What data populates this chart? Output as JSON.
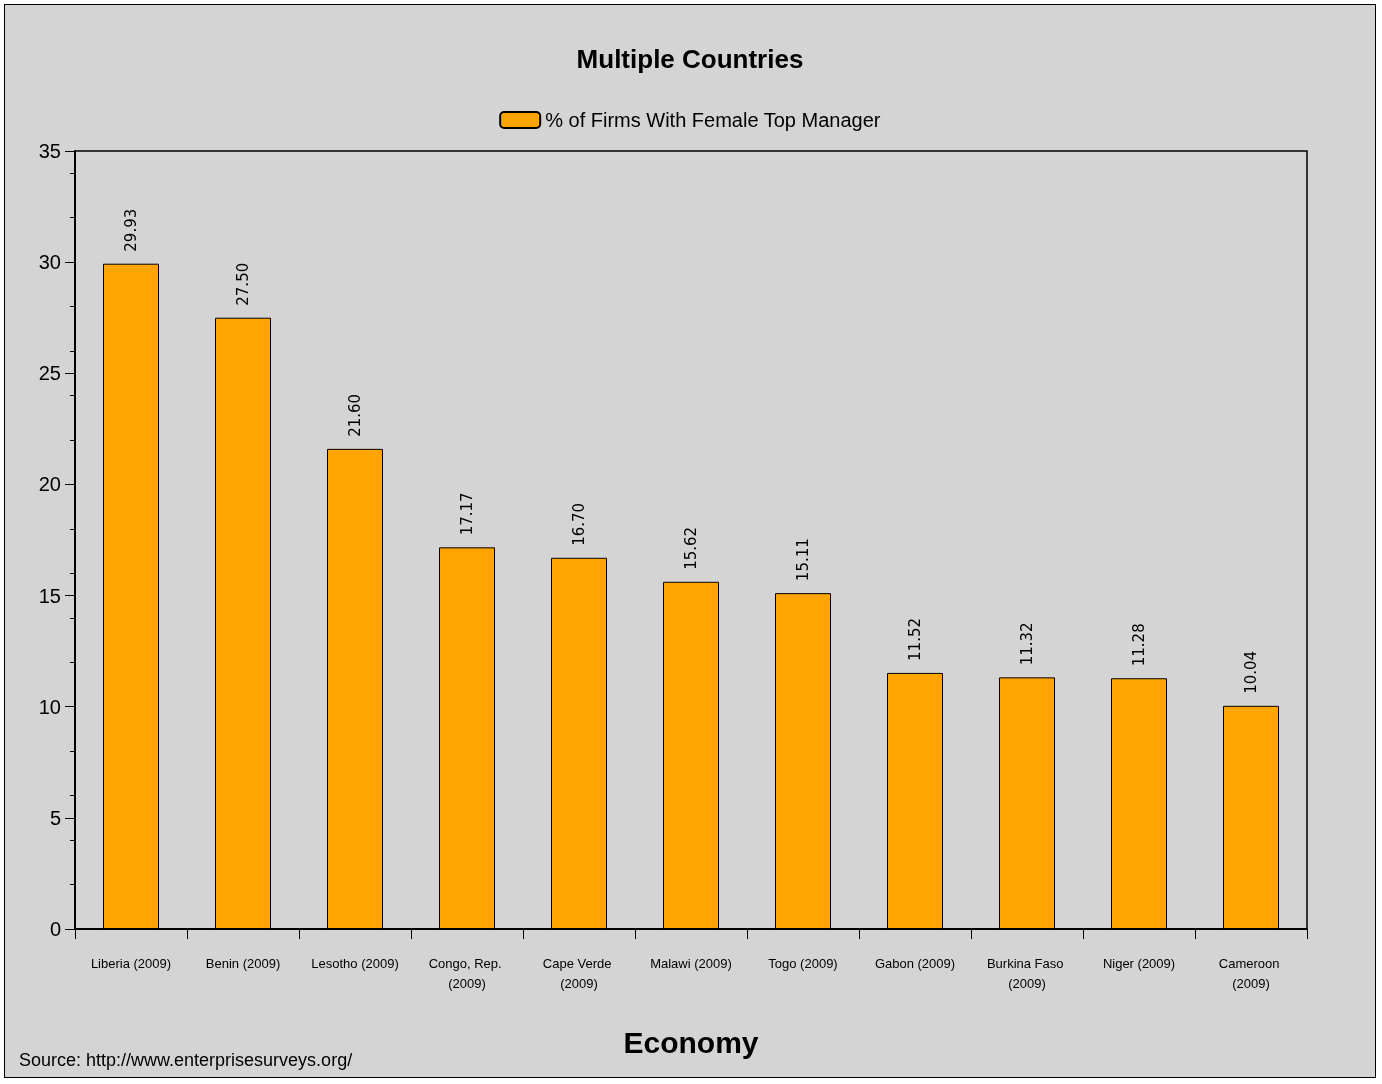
{
  "chart_data": {
    "type": "bar",
    "title": "Multiple Countries",
    "xlabel": "Economy",
    "categories": [
      "Liberia (2009)",
      "Benin (2009)",
      "Lesotho (2009)",
      "Congo, Rep. (2009)",
      "Cape Verde (2009)",
      "Malawi (2009)",
      "Togo (2009)",
      "Gabon (2009)",
      "Burkina Faso (2009)",
      "Niger (2009)",
      "Cameroon (2009)"
    ],
    "series": [
      {
        "name": "% of Firms With Female Top Manager",
        "color": "#ffa500",
        "values": [
          29.93,
          27.5,
          21.6,
          17.17,
          16.7,
          15.62,
          15.11,
          11.52,
          11.32,
          11.28,
          10.04
        ],
        "value_labels": [
          "29.93",
          "27.50",
          "21.60",
          "17.17",
          "16.70",
          "15.62",
          "15.11",
          "11.52",
          "11.32",
          "11.28",
          "10.04"
        ]
      }
    ],
    "ylim": [
      0,
      35
    ],
    "yticks": [
      0,
      5,
      10,
      15,
      20,
      25,
      30,
      35
    ],
    "grid": false,
    "legend": "top",
    "annotations": [
      "Source: http://www.enterprisesurveys.org/"
    ]
  }
}
